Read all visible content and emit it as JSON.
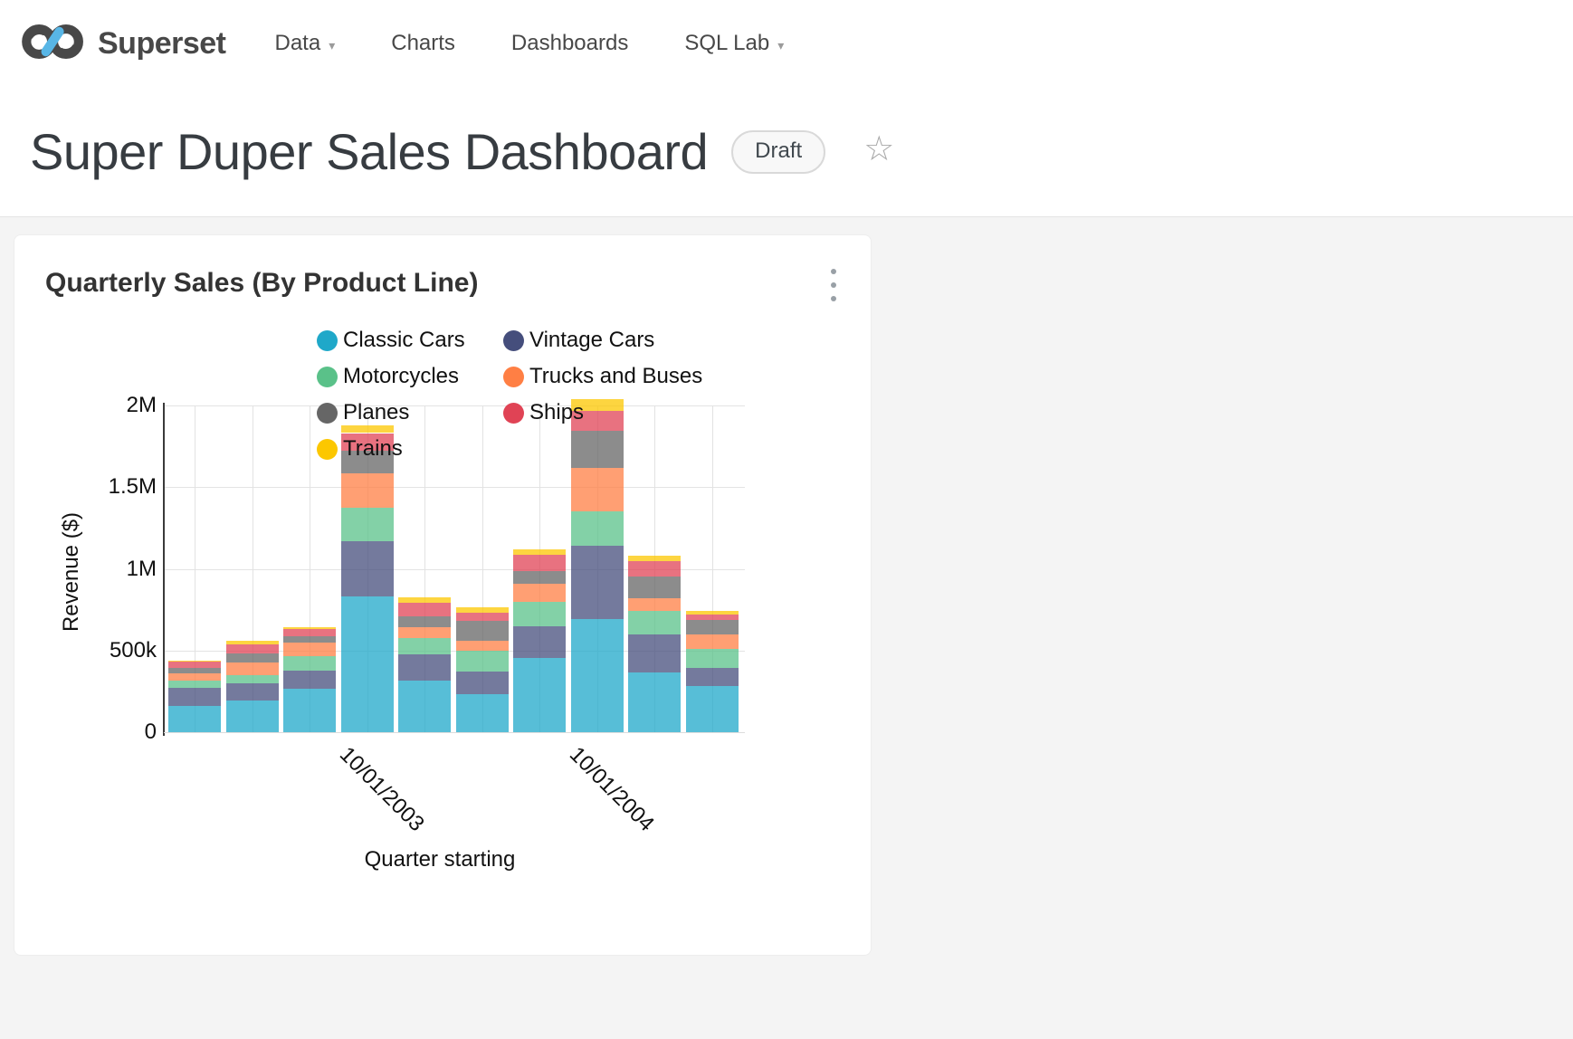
{
  "header": {
    "brand": "Superset",
    "nav": [
      {
        "label": "Data",
        "caret": "▾"
      },
      {
        "label": "Charts"
      },
      {
        "label": "Dashboards"
      },
      {
        "label": "SQL Lab",
        "caret": "▾"
      }
    ]
  },
  "dashboard": {
    "title": "Super Duper Sales Dashboard",
    "status_badge": "Draft",
    "star_icon": "☆"
  },
  "card": {
    "title": "Quarterly Sales (By Product Line)"
  },
  "chart_data": {
    "type": "bar",
    "stacked": true,
    "title": "Quarterly Sales (By Product Line)",
    "xlabel": "Quarter starting",
    "ylabel": "Revenue ($)",
    "ylim": [
      0,
      2000000
    ],
    "grid": true,
    "legend_position": "top",
    "bar_count": 10,
    "bar_fill_opacity": 0.75,
    "y_ticks": [
      {
        "value": 0,
        "label": "0"
      },
      {
        "value": 500000,
        "label": "500k"
      },
      {
        "value": 1000000,
        "label": "1M"
      },
      {
        "value": 1500000,
        "label": "1.5M"
      },
      {
        "value": 2000000,
        "label": "2M"
      }
    ],
    "x_tick_labels": [
      {
        "bar_index": 3,
        "label": "10/01/2003"
      },
      {
        "bar_index": 7,
        "label": "10/01/2004"
      }
    ],
    "series": [
      {
        "name": "Classic Cars",
        "color": "#1FA8C9",
        "values": [
          158000,
          194000,
          265000,
          829000,
          317000,
          233000,
          454000,
          692000,
          366000,
          284000
        ]
      },
      {
        "name": "Vintage Cars",
        "color": "#454E7C",
        "values": [
          113000,
          103000,
          110000,
          339000,
          158000,
          140000,
          196000,
          447000,
          231000,
          112000
        ]
      },
      {
        "name": "Motorcycles",
        "color": "#5AC189",
        "values": [
          45000,
          50000,
          89000,
          205000,
          102000,
          125000,
          149000,
          215000,
          146000,
          112000
        ]
      },
      {
        "name": "Trucks and Buses",
        "color": "#FF7F44",
        "values": [
          46000,
          80000,
          84000,
          210000,
          65000,
          61000,
          108000,
          264000,
          78000,
          90000
        ]
      },
      {
        "name": "Planes",
        "color": "#666666",
        "values": [
          32000,
          56000,
          37000,
          140000,
          65000,
          121000,
          78000,
          229000,
          131000,
          88000
        ]
      },
      {
        "name": "Ships",
        "color": "#E04355",
        "values": [
          37000,
          56000,
          47000,
          108000,
          84000,
          52000,
          102000,
          121000,
          93000,
          34000
        ]
      },
      {
        "name": "Trains",
        "color": "#FCC700",
        "values": [
          9000,
          18000,
          9000,
          45000,
          34000,
          32000,
          32000,
          69000,
          34000,
          22000
        ]
      }
    ]
  }
}
